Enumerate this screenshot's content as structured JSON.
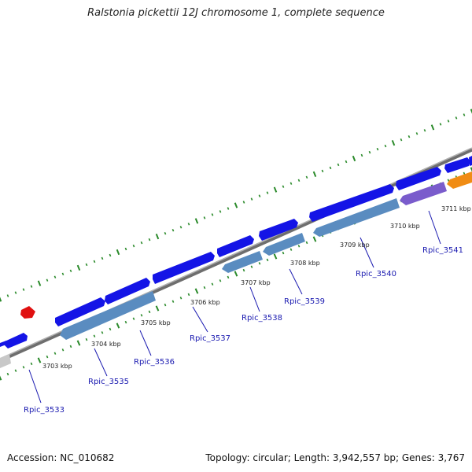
{
  "title": "Ralstonia pickettii 12J chromosome 1, complete sequence",
  "accession": "Accession: NC_010682",
  "summary": "Topology: circular; Length: 3,942,557 bp; Genes: 3,767",
  "scale_labels": [
    "3703 kbp",
    "3704 kbp",
    "3705 kbp",
    "3706 kbp",
    "3707 kbp",
    "3708 kbp",
    "3709 kbp",
    "3710 kbp",
    "3711 kbp"
  ],
  "gene_labels": [
    "Rpic_3533",
    "Rpic_3535",
    "Rpic_3536",
    "Rpic_3537",
    "Rpic_3538",
    "Rpic_3539",
    "Rpic_3540",
    "Rpic_3541"
  ],
  "colors": {
    "backbone": "#8c8c8c",
    "forward_gene": "#1414e6",
    "reverse_gene": "#5a8cc0",
    "purple_gene": "#7a5ccc",
    "orange_gene": "#f08c14",
    "red_feature": "#e01010",
    "grey_feature": "#c8c8c8",
    "tick": "#2a8a2a",
    "label": "#1a1ab0"
  }
}
